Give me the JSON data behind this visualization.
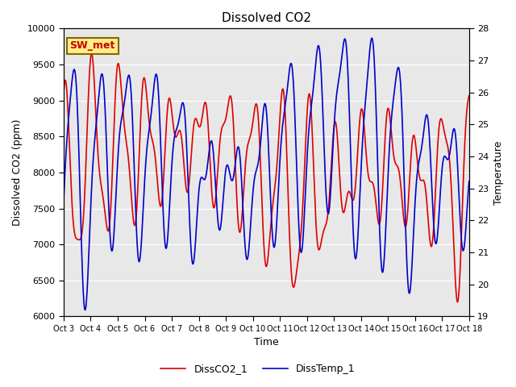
{
  "title": "Dissolved CO2",
  "ylabel_left": "Dissolved CO2 (ppm)",
  "ylabel_right": "Temperature",
  "xlabel": "Time",
  "ylim_left": [
    6000,
    10000
  ],
  "ylim_right": [
    19.0,
    28.0
  ],
  "plot_bg_color": "#e8e8e8",
  "annotation_text": "SW_met",
  "annotation_facecolor": "#ffee88",
  "annotation_edgecolor": "#886600",
  "annotation_textcolor": "#cc0000",
  "line_co2_color": "#dd0000",
  "line_temp_color": "#0000cc",
  "legend_co2_label": "DissCO2_1",
  "legend_temp_label": "DissTemp_1",
  "xtick_labels": [
    "Oct 3",
    "Oct 4",
    "Oct 5",
    "Oct 6",
    "Oct 7",
    "Oct 8",
    "Oct 9",
    "Oct 10",
    "Oct 11",
    "Oct 12",
    "Oct 13",
    "Oct 14",
    "Oct 15",
    "Oct 16",
    "Oct 17",
    "Oct 18"
  ],
  "grid_color": "#ffffff",
  "linewidth": 1.2
}
